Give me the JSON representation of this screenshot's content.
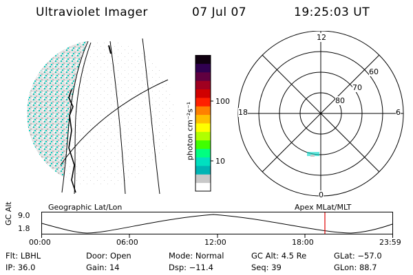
{
  "header": {
    "title": "Ultraviolet Imager",
    "date": "07 Jul 07",
    "time": "19:25:03 UT"
  },
  "earth_panel": {
    "label": "Geographic Lat/Lon"
  },
  "colorbar": {
    "unit_label": "photon cm⁻²s⁻¹",
    "ticks": [
      "100",
      "10"
    ],
    "colors": [
      "#ffffff",
      "#c8c8c8",
      "#00b4b4",
      "#00e0c0",
      "#00ff80",
      "#40ff00",
      "#b0ff00",
      "#ffff00",
      "#ffc000",
      "#ff8000",
      "#ff2000",
      "#d00000",
      "#a00020",
      "#600040",
      "#300050",
      "#100010"
    ]
  },
  "polar_panel": {
    "label": "Apex MLat/MLT",
    "mlt_labels": {
      "top": "12",
      "left": "18",
      "right": "6",
      "bottom": "0"
    },
    "lat_labels": [
      "60",
      "70",
      "80"
    ]
  },
  "altitude_plot": {
    "ylabel": "GC Alt",
    "y_max": "9.0",
    "y_min": "1.8",
    "x_ticks": [
      "00:00",
      "06:00",
      "12:00",
      "18:00",
      "23:59"
    ],
    "marker_color": "#e00000"
  },
  "info": {
    "filter": "Flt: LBHL",
    "ip": "IP: 36.0",
    "door": "Door: Open",
    "gain": "Gain: 14",
    "mode": "Mode: Normal",
    "dsp": "Dsp:  −11.4",
    "gc_alt": "GC Alt: 4.5 Re",
    "seq": "Seq: 39",
    "glat": "GLat: −57.0",
    "glon": "GLon: 88.7"
  }
}
